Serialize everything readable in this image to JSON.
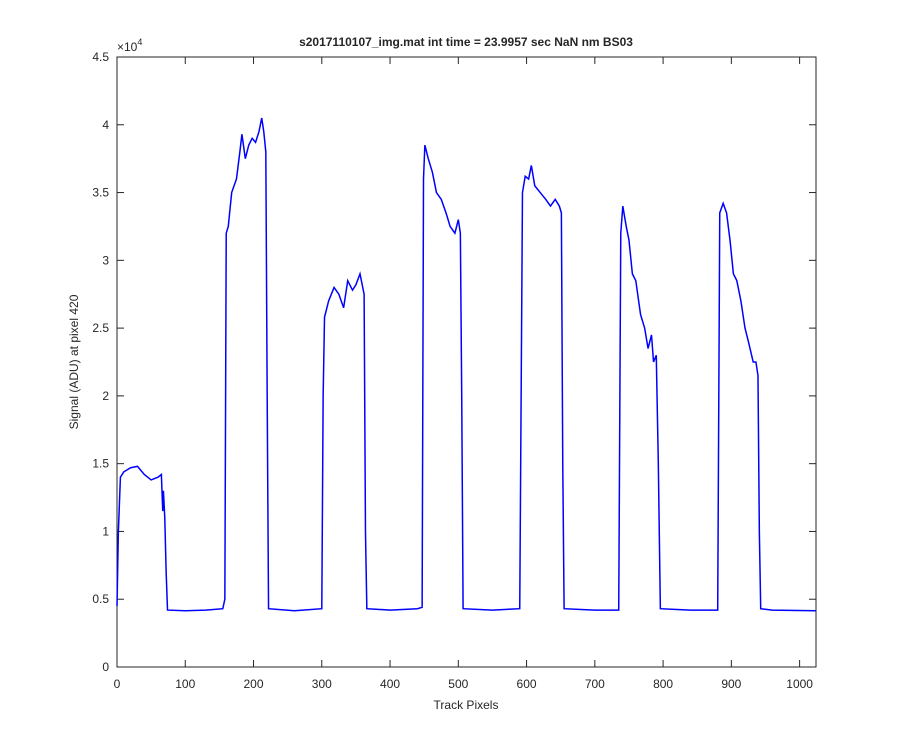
{
  "chart_data": {
    "type": "line",
    "title": "s2017110107_img.mat int time = 23.9957 sec  NaN nm BS03",
    "xlabel": "Track Pixels",
    "ylabel": "Signal (ADU) at pixel 420",
    "y_multiplier": "×10",
    "y_multiplier_exponent": "4",
    "xlim": [
      0,
      1024
    ],
    "ylim": [
      0,
      45000
    ],
    "xticks": [
      0,
      100,
      200,
      300,
      400,
      500,
      600,
      700,
      800,
      900,
      1000
    ],
    "yticks": [
      0,
      {
        "value": 5000,
        "label": "0.5"
      },
      {
        "value": 10000,
        "label": "1"
      },
      {
        "value": 15000,
        "label": "1.5"
      },
      {
        "value": 20000,
        "label": "2"
      },
      {
        "value": 25000,
        "label": "2.5"
      },
      {
        "value": 30000,
        "label": "3"
      },
      {
        "value": 35000,
        "label": "3.5"
      },
      {
        "value": 40000,
        "label": "4"
      },
      {
        "value": 45000,
        "label": "4.5"
      }
    ],
    "grid": false,
    "series": [
      {
        "color": "#0000ff",
        "x": [
          0,
          2,
          5,
          10,
          20,
          30,
          40,
          50,
          60,
          65,
          67,
          68,
          70,
          72,
          74,
          100,
          130,
          155,
          158,
          160,
          163,
          168,
          175,
          180,
          183,
          188,
          193,
          198,
          203,
          208,
          212,
          215,
          218,
          220,
          222,
          260,
          300,
          302,
          304,
          310,
          318,
          325,
          332,
          338,
          345,
          350,
          356,
          362,
          364,
          366,
          400,
          440,
          447,
          449,
          451,
          456,
          462,
          468,
          475,
          482,
          488,
          495,
          500,
          503,
          505,
          507,
          550,
          590,
          594,
          598,
          603,
          607,
          612,
          620,
          628,
          635,
          642,
          648,
          651,
          653,
          655,
          700,
          735,
          738,
          741,
          746,
          750,
          755,
          760,
          767,
          773,
          778,
          783,
          786,
          790,
          793,
          796,
          840,
          880,
          883,
          888,
          893,
          898,
          903,
          908,
          914,
          920,
          925,
          932,
          936,
          939,
          941,
          943,
          960,
          1024
        ],
        "values": [
          4500,
          10000,
          14000,
          14400,
          14700,
          14800,
          14200,
          13800,
          14000,
          14200,
          11500,
          13000,
          11000,
          7000,
          4200,
          4150,
          4200,
          4300,
          5000,
          32000,
          32500,
          35000,
          36000,
          38000,
          39300,
          37500,
          38500,
          39000,
          38700,
          39500,
          40500,
          39500,
          38000,
          20000,
          4300,
          4150,
          4300,
          20000,
          25800,
          27000,
          28000,
          27500,
          26500,
          28500,
          27800,
          28200,
          29000,
          27500,
          10000,
          4300,
          4200,
          4300,
          4400,
          36000,
          38500,
          37500,
          36500,
          35000,
          34500,
          33500,
          32500,
          32000,
          33000,
          32000,
          20000,
          4300,
          4200,
          4300,
          35000,
          36200,
          36000,
          37000,
          35500,
          35000,
          34500,
          34000,
          34500,
          34000,
          33500,
          15000,
          4300,
          4200,
          4200,
          32000,
          34000,
          32500,
          31500,
          29000,
          28500,
          26000,
          25000,
          23500,
          24500,
          22500,
          23000,
          15000,
          4300,
          4200,
          4200,
          33500,
          34200,
          33500,
          31500,
          29000,
          28500,
          27000,
          25000,
          24000,
          22500,
          22500,
          21500,
          10000,
          4300,
          4200,
          4150
        ]
      }
    ]
  }
}
